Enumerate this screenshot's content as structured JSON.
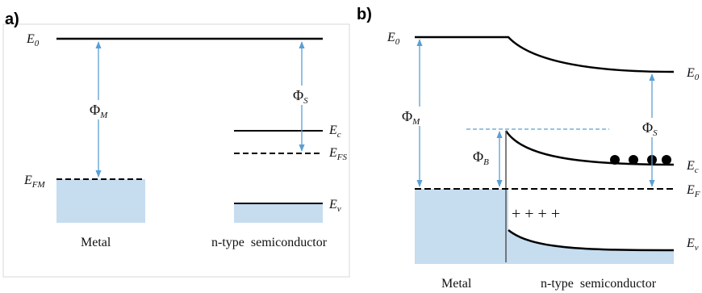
{
  "panel_a": {
    "label": "a)",
    "e0": {
      "main": "E",
      "sub": "0"
    },
    "phi_m": {
      "main": "Φ",
      "sub": "M"
    },
    "phi_s": {
      "main": "Φ",
      "sub": "S"
    },
    "ec": {
      "main": "E",
      "sub": "c"
    },
    "efs": {
      "main": "E",
      "sub": "FS"
    },
    "efm": {
      "main": "E",
      "sub": "FM"
    },
    "ev": {
      "main": "E",
      "sub": "v"
    },
    "metal": "Metal",
    "semi": "n-type  semiconductor"
  },
  "panel_b": {
    "label": "b)",
    "e0_left": {
      "main": "E",
      "sub": "0"
    },
    "e0_right": {
      "main": "E",
      "sub": "0"
    },
    "phi_m": {
      "main": "Φ",
      "sub": "M"
    },
    "phi_s": {
      "main": "Φ",
      "sub": "S"
    },
    "phi_b": {
      "main": "Φ",
      "sub": "B"
    },
    "ec": {
      "main": "E",
      "sub": "c"
    },
    "ef": {
      "main": "E",
      "sub": "F"
    },
    "ev": {
      "main": "E",
      "sub": "v"
    },
    "plus": "+ + + +",
    "metal": "Metal",
    "semi": "n-type  semiconductor"
  },
  "colors": {
    "arrow": "#5a9fd4",
    "metal_fill": "#c6dcef",
    "border": "#d9d9d9"
  }
}
